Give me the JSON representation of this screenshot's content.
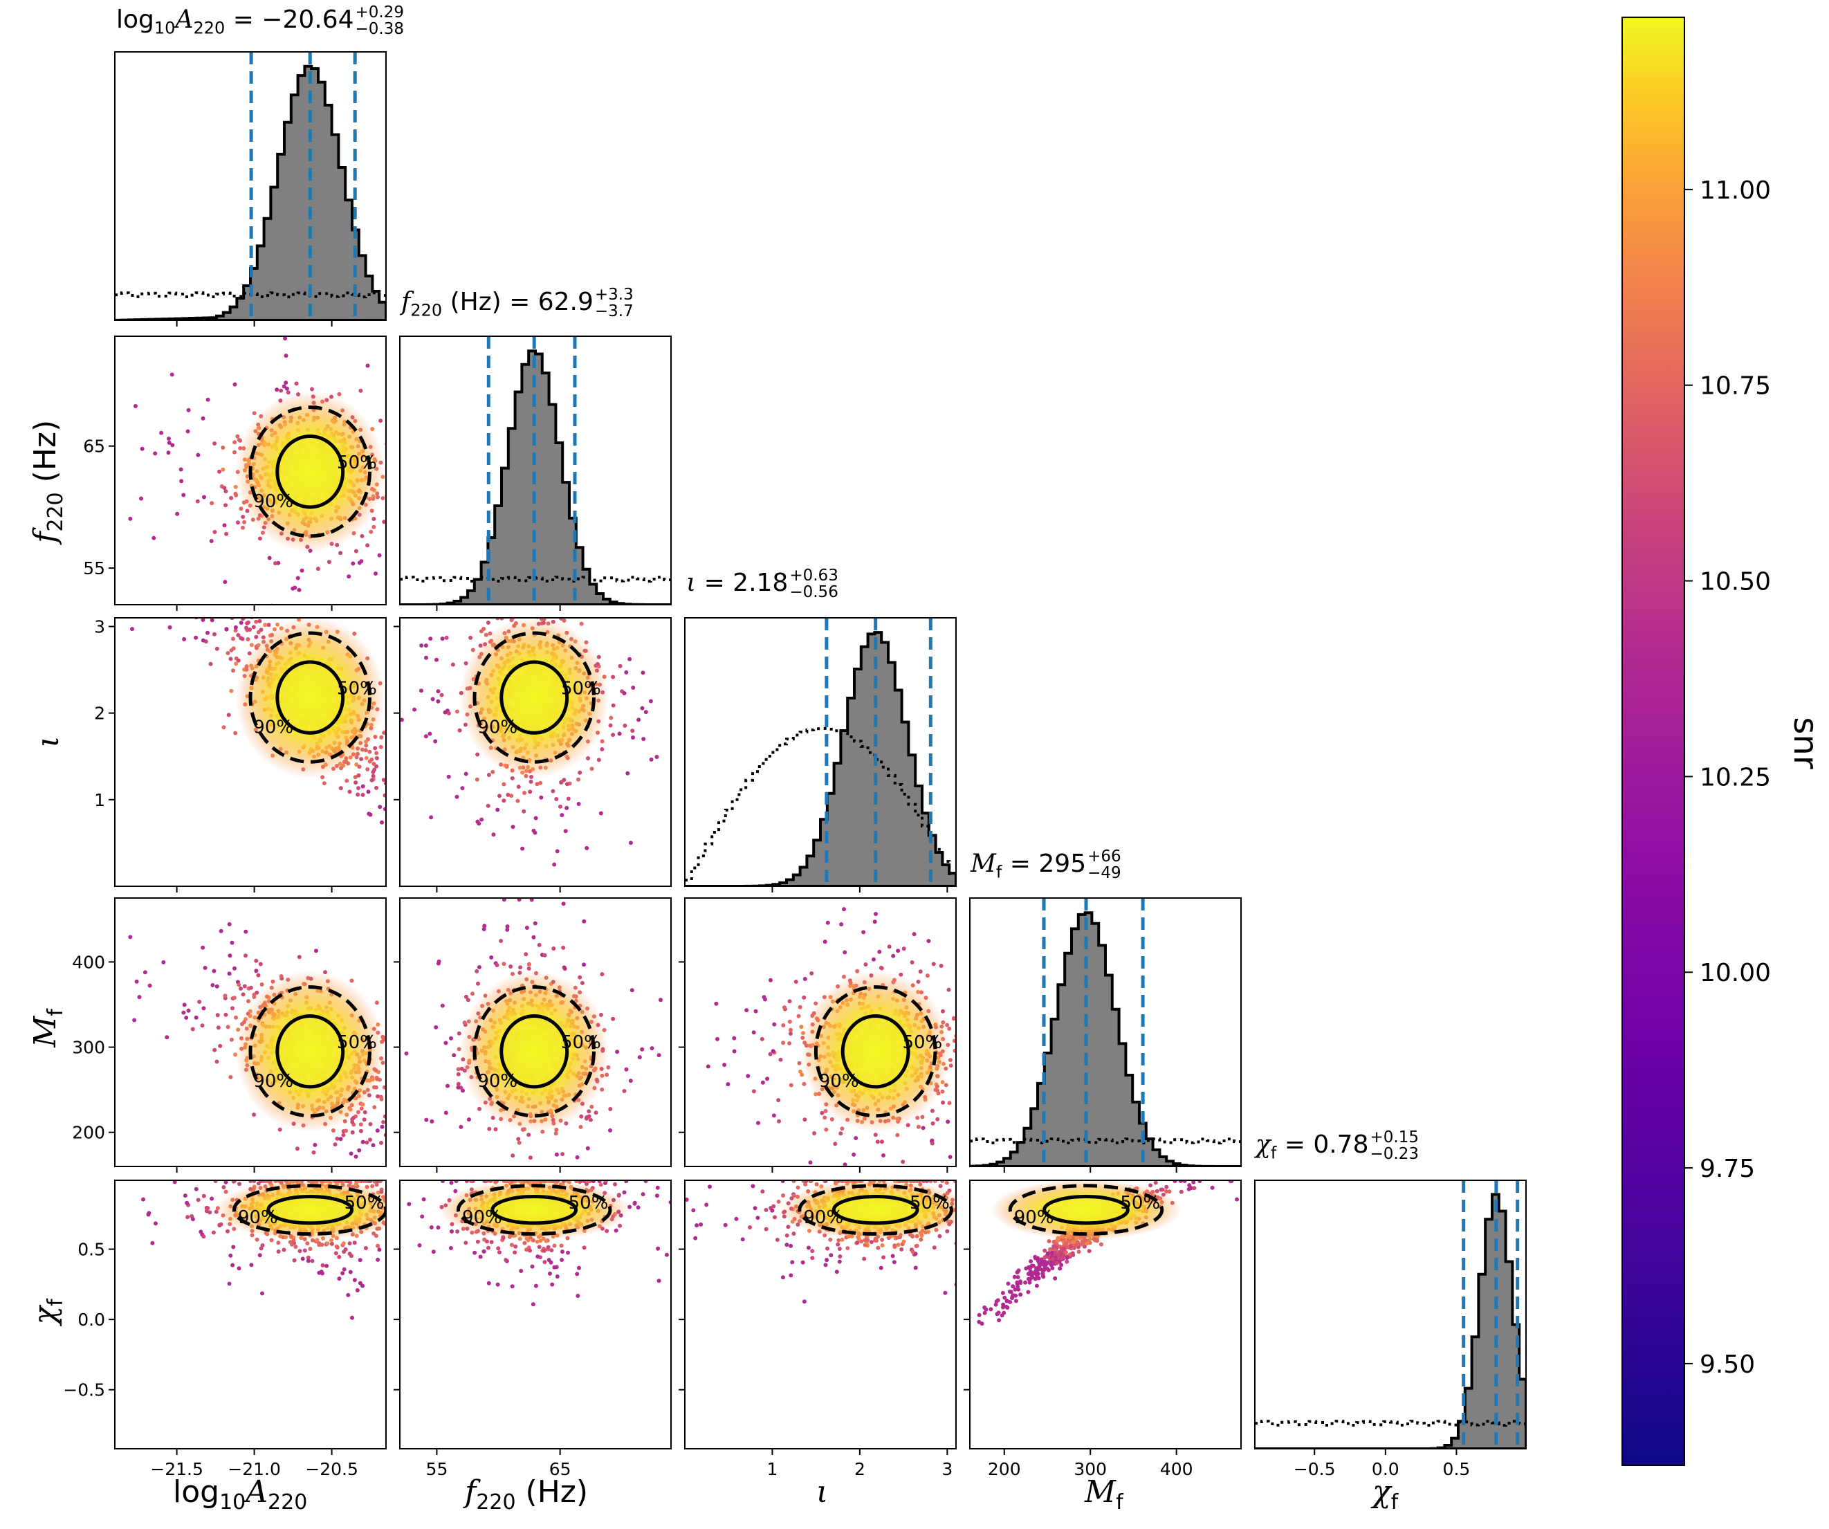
{
  "chart_data": {
    "type": "corner",
    "parameters": [
      {
        "key": "logA",
        "label": "log10A220",
        "title": "log10A220 = -20.64 +0.29 -0.38",
        "median": -20.64,
        "plus": 0.29,
        "minus": 0.38,
        "range": [
          -21.9,
          -20.15
        ],
        "ticks": [
          -21.5,
          -21.0,
          -20.5
        ],
        "tick_labels": [
          "−21.5",
          "−21.0",
          "−20.5"
        ]
      },
      {
        "key": "f220",
        "label": "f220 (Hz)",
        "title": "f220 (Hz) = 62.9 +3.3 -3.7",
        "median": 62.9,
        "plus": 3.3,
        "minus": 3.7,
        "range": [
          52.0,
          74.0
        ],
        "ticks": [
          55,
          65
        ],
        "tick_labels": [
          "55",
          "65"
        ]
      },
      {
        "key": "iota",
        "label": "ι",
        "title": "ι = 2.18 +0.63 -0.56",
        "median": 2.18,
        "plus": 0.63,
        "minus": 0.56,
        "range": [
          0.0,
          3.1
        ],
        "ticks": [
          1,
          2,
          3
        ],
        "tick_labels": [
          "1",
          "2",
          "3"
        ]
      },
      {
        "key": "Mf",
        "label": "Mf",
        "title": "Mf = 295 +66 -49",
        "median": 295,
        "plus": 66,
        "minus": 49,
        "range": [
          160,
          475
        ],
        "ticks": [
          200,
          300,
          400
        ],
        "tick_labels": [
          "200",
          "300",
          "400"
        ]
      },
      {
        "key": "chif",
        "label": "χf",
        "title": "χf = 0.78 +0.15 -0.23",
        "median": 0.78,
        "plus": 0.15,
        "minus": 0.23,
        "range": [
          -0.92,
          0.99
        ],
        "ticks": [
          -0.5,
          0.0,
          0.5
        ],
        "tick_labels": [
          "−0.5",
          "0.0",
          "0.5"
        ]
      }
    ],
    "diagonal": "1D marginal histograms (grey fill) with dotted prior histogram and dashed blue lines at 5%, 50%, 95% quantiles",
    "off_diagonal": "scatter of posterior samples colored by snr with 50% (solid) and 90% (dashed) credible contours",
    "contour_labels": [
      "50%",
      "90%"
    ],
    "colorbar": {
      "label": "snr",
      "range": [
        9.37,
        11.22
      ],
      "ticks": [
        9.5,
        9.75,
        10.0,
        10.25,
        10.5,
        10.75,
        11.0
      ],
      "tick_labels": [
        "9.50",
        "9.75",
        "10.00",
        "10.25",
        "10.50",
        "10.75",
        "11.00"
      ],
      "colormap": "plasma"
    },
    "colors": {
      "quantile_line": "#1f77b4",
      "hist_fill": "#808080",
      "contour": "#000000"
    }
  },
  "texts": {
    "title_logA": {
      "lhs": "log",
      "sub1": "10",
      "A": "A",
      "sub2": "220",
      "eq": " = −20.64",
      "plus": "+0.29",
      "minus": "−0.38"
    },
    "title_f220": {
      "f": "f",
      "sub": "220",
      "unit": " (Hz) = 62.9",
      "plus": "+3.3",
      "minus": "−3.7"
    },
    "title_iota": {
      "sym": "ι",
      "eq": " = 2.18",
      "plus": "+0.63",
      "minus": "−0.56"
    },
    "title_Mf": {
      "sym": "M",
      "sub": "f",
      "eq": " = 295",
      "plus": "+66",
      "minus": "−49"
    },
    "title_chif": {
      "sym": "χ",
      "sub": "f",
      "eq": " = 0.78",
      "plus": "+0.15",
      "minus": "−0.23"
    },
    "xlabel_logA": {
      "a": "log",
      "b": "10",
      "c": "A",
      "d": "220"
    },
    "xlabel_f220": {
      "a": "f",
      "b": "220",
      "c": " (Hz)"
    },
    "xlabel_iota": "ι",
    "xlabel_Mf": {
      "a": "M",
      "b": "f"
    },
    "xlabel_chif": {
      "a": "χ",
      "b": "f"
    },
    "ylabel_f220": {
      "a": "f",
      "b": "220",
      "c": " (Hz)"
    },
    "ylabel_iota": "ι",
    "ylabel_Mf": {
      "a": "M",
      "b": "f"
    },
    "ylabel_chif": {
      "a": "χ",
      "b": "f"
    },
    "colorbar_label": "snr"
  }
}
